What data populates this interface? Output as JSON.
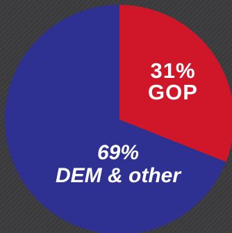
{
  "chart_data": {
    "type": "pie",
    "slices": [
      {
        "label": "GOP",
        "value": 31,
        "value_label": "31%",
        "color": "#d0172a"
      },
      {
        "label": "DEM & other",
        "value": 69,
        "value_label": "69%",
        "color": "#2e3192"
      }
    ],
    "title": "",
    "legend": "none"
  },
  "background_color": "#3a3a3d"
}
